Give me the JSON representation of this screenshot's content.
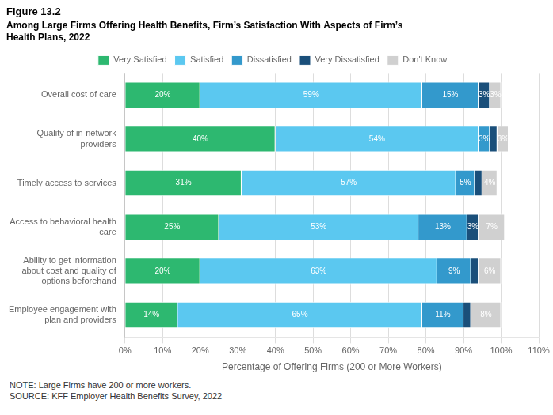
{
  "chart_data": {
    "type": "bar",
    "orientation": "horizontal",
    "stacked": true,
    "title": "Figure 13.2",
    "subtitle": "Among Large Firms Offering Health Benefits, Firm’s Satisfaction With Aspects of Firm’s\nHealth Plans, 2022",
    "categories": [
      "Overall cost of care",
      "Quality of in-network\nproviders",
      "Timely access to services",
      "Access to behavioral health\ncare",
      "Ability to get information\nabout cost and quality of\noptions beforehand",
      "Employee engagement with\nplan and providers"
    ],
    "series": [
      {
        "name": "Very Satisfied",
        "color": "#2db870",
        "values": [
          20,
          40,
          31,
          25,
          20,
          14
        ],
        "value_labels": [
          "20%",
          "40%",
          "31%",
          "25%",
          "20%",
          "14%"
        ]
      },
      {
        "name": "Satisfied",
        "color": "#5bc8f0",
        "values": [
          59,
          54,
          57,
          53,
          63,
          65
        ],
        "value_labels": [
          "59%",
          "54%",
          "57%",
          "53%",
          "63%",
          "65%"
        ]
      },
      {
        "name": "Dissatisfied",
        "color": "#3399cc",
        "values": [
          15,
          3,
          5,
          13,
          9,
          11
        ],
        "value_labels": [
          "15%",
          "3%",
          "5%",
          "13%",
          "9%",
          "11%"
        ]
      },
      {
        "name": "Very Dissatisfied",
        "color": "#1a4f7a",
        "values": [
          3,
          2,
          2,
          3,
          2,
          2
        ],
        "value_labels": [
          "3%",
          null,
          null,
          "3%",
          null,
          null
        ]
      },
      {
        "name": "Don't Know",
        "color": "#d0d0d0",
        "values": [
          3,
          3,
          4,
          7,
          6,
          8
        ],
        "value_labels": [
          "3%",
          "3%",
          "4%",
          "7%",
          "6%",
          "8%"
        ]
      }
    ],
    "xlabel": "Percentage of Offering Firms (200 or More Workers)",
    "xlim": [
      0,
      110
    ],
    "xticks": [
      {
        "value": 0,
        "label": "0%"
      },
      {
        "value": 10,
        "label": "10%"
      },
      {
        "value": 20,
        "label": "20%"
      },
      {
        "value": 30,
        "label": "30%"
      },
      {
        "value": 40,
        "label": "40%"
      },
      {
        "value": 50,
        "label": "50%"
      },
      {
        "value": 60,
        "label": "60%"
      },
      {
        "value": 70,
        "label": "70%"
      },
      {
        "value": 80,
        "label": "80%"
      },
      {
        "value": 90,
        "label": "90%"
      },
      {
        "value": 100,
        "label": "100%"
      },
      {
        "value": 110,
        "label": "110%"
      }
    ],
    "grid": true,
    "legend": "top",
    "data_labels": true,
    "annotations": [
      "NOTE: Large Firms have 200 or more workers.",
      "SOURCE: KFF Employer Health Benefits Survey, 2022"
    ]
  }
}
